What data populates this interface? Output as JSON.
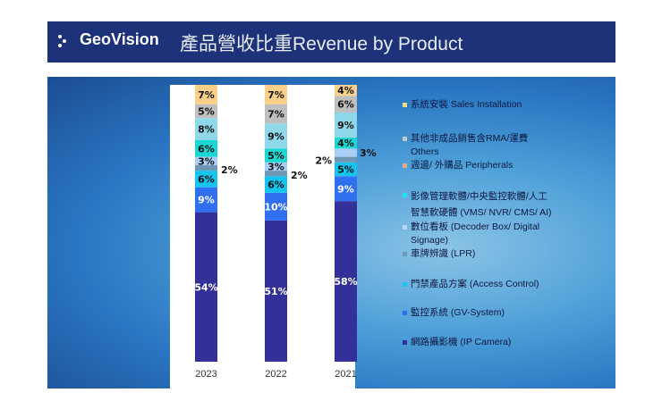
{
  "header": {
    "brand": "GeoVision",
    "title": "產品營收比重Revenue by Product"
  },
  "chart_data": {
    "type": "bar",
    "stacked": true,
    "categories": [
      "2023",
      "2022",
      "2021"
    ],
    "ylim": [
      0,
      100
    ],
    "grid": false,
    "legend_position": "right",
    "series": [
      {
        "name": "網路攝影機 (IP Camera)",
        "color": "#34309a",
        "values": [
          54,
          51,
          58
        ]
      },
      {
        "name": "監控系統 (GV-System)",
        "color": "#2f6ff0",
        "values": [
          9,
          10,
          9
        ]
      },
      {
        "name": "門禁產品方案 (Access Control)",
        "color": "#14c4ef",
        "values": [
          6,
          6,
          5
        ]
      },
      {
        "name": "車牌辨識 (LPR)",
        "color": "#6e97b3",
        "values": [
          2,
          2,
          2
        ]
      },
      {
        "name": "數位看板 (Decoder Box/  Digital Signage)",
        "color": "#a9cdf5",
        "values": [
          3,
          3,
          3
        ]
      },
      {
        "name": "影像管理軟體/中央監控軟體/人工智慧軟硬體 (VMS/ NVR/ CMS/ AI)",
        "color": "#1ad7d4",
        "values": [
          6,
          5,
          4
        ]
      },
      {
        "name": "週邊/ 外購品 Peripherals",
        "color": "#8fd8ea",
        "legend_color": "#e8a888",
        "values": [
          8,
          9,
          9
        ]
      },
      {
        "name": "其他非成品銷售含RMA/運費 Others",
        "color": "#bfbfbf",
        "values": [
          5,
          7,
          6
        ]
      },
      {
        "name": "系統安裝 Sales Installation",
        "color": "#fcd08a",
        "legend_color": "#f2dc8a",
        "values": [
          7,
          7,
          4
        ]
      }
    ],
    "legend": [
      {
        "line1": "系統安裝 Sales Installation",
        "line2": "",
        "color": "#f2dc8a"
      },
      {
        "line1": "其他非成品銷售含RMA/運費",
        "line2": "Others",
        "color": "#c8c8c8"
      },
      {
        "line1": "週邊/ 外購品 Peripherals",
        "line2": "",
        "color": "#e8a888"
      },
      {
        "line1": "影像管理軟體/中央監控軟體/人工",
        "line2": "智慧軟硬體 (VMS/ NVR/ CMS/ AI)",
        "color": "#1ee4f0"
      },
      {
        "line1": "數位看板 (Decoder Box/  Digital",
        "line2": "Signage)",
        "color": "#b8d8f5"
      },
      {
        "line1": "車牌辨識 (LPR)",
        "line2": "",
        "color": "#6e97b3"
      },
      {
        "line1": "門禁產品方案 (Access Control)",
        "line2": "",
        "color": "#14c4ef"
      },
      {
        "line1": "監控系統 (GV-System)",
        "line2": "",
        "color": "#2f6ff0"
      },
      {
        "line1": "網路攝影機 (IP Camera)",
        "line2": "",
        "color": "#34309a"
      }
    ]
  }
}
